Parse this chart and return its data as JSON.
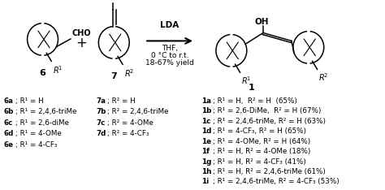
{
  "background_color": "#ffffff",
  "fig_width": 4.74,
  "fig_height": 2.34,
  "dpi": 100,
  "left_list": [
    {
      "bold": "6a",
      "rest": "; R¹ = H"
    },
    {
      "bold": "6b",
      "rest": "; R¹ = 2,4,6-triMe"
    },
    {
      "bold": "6c",
      "rest": "; R¹ = 2,6-diMe"
    },
    {
      "bold": "6d",
      "rest": "; R¹ = 4-OMe"
    },
    {
      "bold": "6e",
      "rest": "; R¹ = 4-CF₃"
    }
  ],
  "middle_list": [
    {
      "bold": "7a",
      "rest": "; R² = H"
    },
    {
      "bold": "7b",
      "rest": "; R² = 2,4,6-triMe"
    },
    {
      "bold": "7c",
      "rest": "; R² = 4-OMe"
    },
    {
      "bold": "7d",
      "rest": "; R² = 4-CF₃"
    }
  ],
  "right_list": [
    {
      "bold": "1a",
      "rest": "; R¹ = H,  R² = H  (65%)"
    },
    {
      "bold": "1b",
      "rest": "; R¹ = 2,6-DiMe,  R² = H (67%)"
    },
    {
      "bold": "1c",
      "rest": "; R¹ = 2,4,6-triMe, R² = H (63%)"
    },
    {
      "bold": "1d",
      "rest": "; R¹ = 4-CF₃, R² = H (65%)"
    },
    {
      "bold": "1e",
      "rest": "; R¹ = 4-OMe, R² = H (64%)"
    },
    {
      "bold": "1f",
      "rest": "; R¹ = H, R² = 4-OMe (18%)"
    },
    {
      "bold": "1g",
      "rest": "; R¹ = H, R² = 4-CF₃ (41%)"
    },
    {
      "bold": "1h",
      "rest": "; R¹ = H, R² = 2,4,6-triMe (61%)"
    },
    {
      "bold": "1i",
      "rest": "; R¹ = 2,4,6-triMe, R² = 4-CF₃ (53%)"
    }
  ]
}
